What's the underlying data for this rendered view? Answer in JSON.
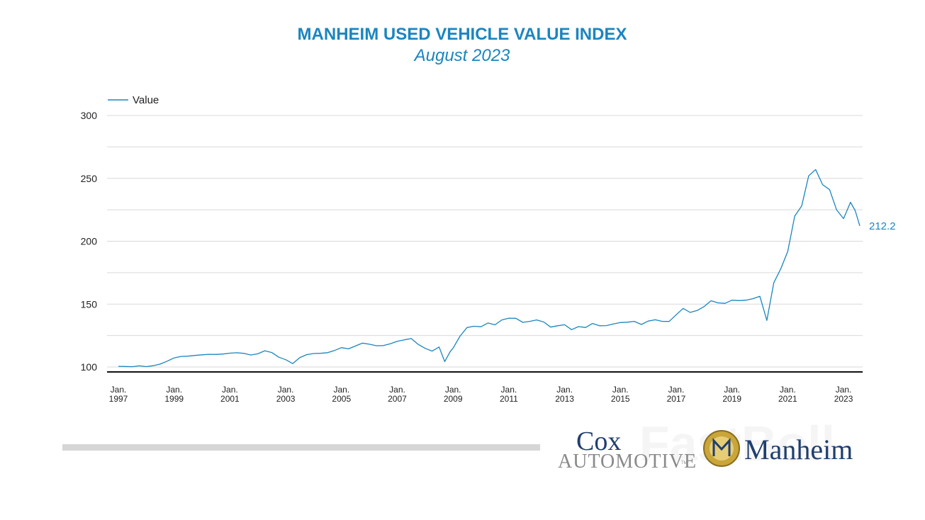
{
  "chart_data": {
    "type": "line",
    "title": "MANHEIM USED VEHICLE VALUE INDEX",
    "subtitle": "August 2023",
    "xlabel": "",
    "ylabel": "",
    "ylim": [
      100,
      300
    ],
    "xlim": [
      1997.0,
      2023.583
    ],
    "yticks": [
      100,
      150,
      200,
      250,
      300
    ],
    "xticks": [
      {
        "line1": "Jan.",
        "line2": "1997",
        "x": 1997.0
      },
      {
        "line1": "Jan.",
        "line2": "1999",
        "x": 1999.0
      },
      {
        "line1": "Jan.",
        "line2": "2001",
        "x": 2001.0
      },
      {
        "line1": "Jan.",
        "line2": "2003",
        "x": 2003.0
      },
      {
        "line1": "Jan.",
        "line2": "2005",
        "x": 2005.0
      },
      {
        "line1": "Jan.",
        "line2": "2007",
        "x": 2007.0
      },
      {
        "line1": "Jan.",
        "line2": "2009",
        "x": 2009.0
      },
      {
        "line1": "Jan.",
        "line2": "2011",
        "x": 2011.0
      },
      {
        "line1": "Jan.",
        "line2": "2013",
        "x": 2013.0
      },
      {
        "line1": "Jan.",
        "line2": "2015",
        "x": 2015.0
      },
      {
        "line1": "Jan.",
        "line2": "2017",
        "x": 2017.0
      },
      {
        "line1": "Jan.",
        "line2": "2019",
        "x": 2019.0
      },
      {
        "line1": "Jan.",
        "line2": "2021",
        "x": 2021.0
      },
      {
        "line1": "Jan.",
        "line2": "2023",
        "x": 2023.0
      }
    ],
    "grid": true,
    "legend": "top-left",
    "series": [
      {
        "name": "Value",
        "color": "#1a86c0",
        "end_label": "212.2",
        "points": [
          [
            1997.0,
            100.5
          ],
          [
            1997.25,
            100.4
          ],
          [
            1997.5,
            100.2
          ],
          [
            1997.75,
            100.9
          ],
          [
            1998.0,
            100.3
          ],
          [
            1998.25,
            101.0
          ],
          [
            1998.5,
            102.3
          ],
          [
            1998.75,
            104.6
          ],
          [
            1999.0,
            107.2
          ],
          [
            1999.25,
            108.4
          ],
          [
            1999.5,
            108.6
          ],
          [
            1999.75,
            109.2
          ],
          [
            2000.0,
            109.7
          ],
          [
            2000.25,
            110.1
          ],
          [
            2000.5,
            110.0
          ],
          [
            2000.75,
            110.3
          ],
          [
            2001.0,
            111.0
          ],
          [
            2001.25,
            111.3
          ],
          [
            2001.5,
            110.8
          ],
          [
            2001.75,
            109.5
          ],
          [
            2002.0,
            110.5
          ],
          [
            2002.25,
            112.9
          ],
          [
            2002.5,
            111.5
          ],
          [
            2002.75,
            107.8
          ],
          [
            2003.0,
            105.8
          ],
          [
            2003.25,
            102.7
          ],
          [
            2003.5,
            107.4
          ],
          [
            2003.75,
            109.8
          ],
          [
            2004.0,
            110.7
          ],
          [
            2004.25,
            110.9
          ],
          [
            2004.5,
            111.4
          ],
          [
            2004.75,
            113.1
          ],
          [
            2005.0,
            115.4
          ],
          [
            2005.25,
            114.4
          ],
          [
            2005.5,
            116.7
          ],
          [
            2005.75,
            119.0
          ],
          [
            2006.0,
            118.1
          ],
          [
            2006.25,
            116.9
          ],
          [
            2006.5,
            117.0
          ],
          [
            2006.75,
            118.5
          ],
          [
            2007.0,
            120.4
          ],
          [
            2007.25,
            121.6
          ],
          [
            2007.5,
            122.6
          ],
          [
            2007.75,
            118.0
          ],
          [
            2008.0,
            114.8
          ],
          [
            2008.25,
            112.6
          ],
          [
            2008.5,
            115.9
          ],
          [
            2008.7,
            104.3
          ],
          [
            2008.9,
            112.3
          ],
          [
            2009.0,
            115.0
          ],
          [
            2009.25,
            124.5
          ],
          [
            2009.5,
            131.4
          ],
          [
            2009.75,
            132.4
          ],
          [
            2010.0,
            132.0
          ],
          [
            2010.25,
            135.0
          ],
          [
            2010.5,
            133.5
          ],
          [
            2010.75,
            137.4
          ],
          [
            2011.0,
            138.8
          ],
          [
            2011.25,
            138.7
          ],
          [
            2011.5,
            135.5
          ],
          [
            2011.75,
            136.3
          ],
          [
            2012.0,
            137.4
          ],
          [
            2012.25,
            135.8
          ],
          [
            2012.5,
            131.7
          ],
          [
            2012.75,
            132.8
          ],
          [
            2013.0,
            133.6
          ],
          [
            2013.25,
            129.7
          ],
          [
            2013.5,
            132.1
          ],
          [
            2013.75,
            131.4
          ],
          [
            2014.0,
            134.6
          ],
          [
            2014.25,
            132.8
          ],
          [
            2014.5,
            132.9
          ],
          [
            2014.75,
            134.2
          ],
          [
            2015.0,
            135.3
          ],
          [
            2015.25,
            135.6
          ],
          [
            2015.5,
            136.3
          ],
          [
            2015.75,
            133.8
          ],
          [
            2016.0,
            136.5
          ],
          [
            2016.25,
            137.5
          ],
          [
            2016.5,
            136.3
          ],
          [
            2016.75,
            136.2
          ],
          [
            2017.0,
            141.5
          ],
          [
            2017.25,
            146.6
          ],
          [
            2017.5,
            143.4
          ],
          [
            2017.75,
            144.9
          ],
          [
            2018.0,
            148.0
          ],
          [
            2018.25,
            152.7
          ],
          [
            2018.5,
            151.0
          ],
          [
            2018.75,
            150.6
          ],
          [
            2019.0,
            153.1
          ],
          [
            2019.25,
            152.8
          ],
          [
            2019.5,
            153.1
          ],
          [
            2019.75,
            154.3
          ],
          [
            2020.0,
            156.2
          ],
          [
            2020.25,
            137.0
          ],
          [
            2020.5,
            167.0
          ],
          [
            2020.75,
            178.0
          ],
          [
            2021.0,
            192.0
          ],
          [
            2021.25,
            220.0
          ],
          [
            2021.5,
            228.0
          ],
          [
            2021.75,
            252.0
          ],
          [
            2022.0,
            257.0
          ],
          [
            2022.25,
            245.0
          ],
          [
            2022.5,
            241.0
          ],
          [
            2022.75,
            225.0
          ],
          [
            2023.0,
            218.0
          ],
          [
            2023.25,
            231.0
          ],
          [
            2023.42,
            224.2
          ],
          [
            2023.583,
            212.2
          ]
        ]
      }
    ]
  },
  "footer": {
    "logo_cox_text": "Cox",
    "logo_automotive_text": "AUTOMOTIVE",
    "logo_tm": "TM",
    "logo_manheim_text": "Manheim",
    "watermark_text": "FastBoll"
  }
}
